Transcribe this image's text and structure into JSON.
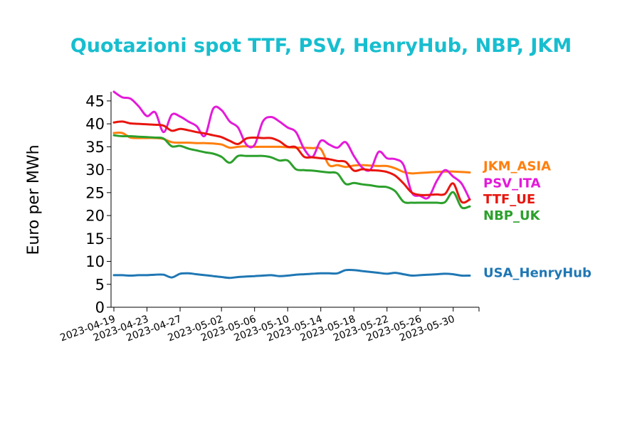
{
  "chart_data": {
    "type": "line",
    "title": "Quotazioni spot TTF, PSV, HenryHub, NBP, JKM",
    "ylabel": "Euro per MWh",
    "xlabel": "",
    "ylim": [
      0,
      47
    ],
    "yticks": [
      0,
      5,
      10,
      15,
      20,
      25,
      30,
      35,
      40,
      45
    ],
    "x": [
      "2023-04-19",
      "2023-04-20",
      "2023-04-21",
      "2023-04-22",
      "2023-04-23",
      "2023-04-24",
      "2023-04-25",
      "2023-04-26",
      "2023-04-27",
      "2023-04-28",
      "2023-04-29",
      "2023-04-30",
      "2023-05-01",
      "2023-05-02",
      "2023-05-03",
      "2023-05-04",
      "2023-05-05",
      "2023-05-06",
      "2023-05-07",
      "2023-05-08",
      "2023-05-09",
      "2023-05-10",
      "2023-05-11",
      "2023-05-12",
      "2023-05-13",
      "2023-05-14",
      "2023-05-15",
      "2023-05-16",
      "2023-05-17",
      "2023-05-18",
      "2023-05-19",
      "2023-05-20",
      "2023-05-21",
      "2023-05-22",
      "2023-05-23",
      "2023-05-24",
      "2023-05-25",
      "2023-05-26",
      "2023-05-27",
      "2023-05-28",
      "2023-05-29",
      "2023-05-30",
      "2023-05-31",
      "2023-06-01"
    ],
    "xticks": [
      "2023-04-19",
      "2023-04-23",
      "2023-04-27",
      "2023-05-02",
      "2023-05-06",
      "2023-05-10",
      "2023-05-14",
      "2023-05-18",
      "2023-05-22",
      "2023-05-26",
      "2023-05-30"
    ],
    "series": [
      {
        "name": "JKM_ASIA",
        "color": "#ff7f0e",
        "values": [
          38.0,
          38.0,
          37.0,
          36.9,
          36.9,
          36.9,
          36.7,
          36.0,
          35.9,
          35.9,
          35.8,
          35.8,
          35.7,
          35.5,
          34.8,
          35.0,
          35.1,
          35.0,
          35.0,
          35.0,
          35.0,
          34.9,
          34.8,
          34.8,
          34.7,
          34.5,
          31.0,
          31.0,
          30.6,
          30.9,
          31.0,
          30.9,
          30.8,
          30.8,
          30.3,
          29.5,
          29.2,
          29.3,
          29.4,
          29.5,
          29.6,
          29.6,
          29.5,
          29.4
        ]
      },
      {
        "name": "PSV_ITA",
        "color": "#e41ad9",
        "values": [
          47.0,
          45.8,
          45.5,
          43.8,
          41.7,
          42.5,
          38.2,
          42.0,
          41.6,
          40.5,
          39.5,
          37.4,
          43.3,
          43.0,
          40.5,
          39.2,
          35.5,
          35.4,
          40.5,
          41.5,
          40.5,
          39.2,
          38.2,
          34.5,
          32.8,
          36.3,
          35.5,
          34.8,
          36.0,
          33.0,
          30.5,
          30.0,
          33.9,
          32.5,
          32.3,
          31.0,
          25.0,
          24.3,
          23.9,
          27.5,
          29.9,
          28.5,
          27.0,
          23.5
        ]
      },
      {
        "name": "TTF_UE",
        "color": "#e8150e",
        "values": [
          40.3,
          40.5,
          40.1,
          40.0,
          39.9,
          39.8,
          39.6,
          38.5,
          38.9,
          38.6,
          38.2,
          37.9,
          37.5,
          37.1,
          36.3,
          35.6,
          36.8,
          37.0,
          36.9,
          36.9,
          36.2,
          35.0,
          34.9,
          32.8,
          32.7,
          32.5,
          32.3,
          31.9,
          31.7,
          29.8,
          30.1,
          29.9,
          29.8,
          29.5,
          28.7,
          27.0,
          25.0,
          24.5,
          24.5,
          24.6,
          24.7,
          27.0,
          23.0,
          23.5
        ]
      },
      {
        "name": "NBP_UK",
        "color": "#2ca02c",
        "values": [
          37.5,
          37.3,
          37.3,
          37.2,
          37.1,
          37.0,
          36.8,
          35.1,
          35.2,
          34.6,
          34.2,
          33.8,
          33.5,
          32.8,
          31.5,
          33.0,
          33.0,
          33.0,
          33.0,
          32.7,
          32.0,
          32.0,
          30.1,
          29.9,
          29.8,
          29.6,
          29.4,
          29.2,
          26.9,
          27.1,
          26.8,
          26.6,
          26.3,
          26.2,
          25.3,
          23.0,
          22.8,
          22.8,
          22.8,
          22.8,
          22.9,
          25.1,
          21.8,
          22.0
        ]
      },
      {
        "name": "USA_HenryHub",
        "color": "#1f77b4",
        "values": [
          7.0,
          7.0,
          6.9,
          7.0,
          7.0,
          7.1,
          7.1,
          6.5,
          7.3,
          7.4,
          7.2,
          7.0,
          6.8,
          6.6,
          6.4,
          6.6,
          6.7,
          6.8,
          6.9,
          7.0,
          6.8,
          6.9,
          7.1,
          7.2,
          7.3,
          7.4,
          7.4,
          7.4,
          8.1,
          8.1,
          7.9,
          7.7,
          7.5,
          7.3,
          7.5,
          7.2,
          6.9,
          7.0,
          7.1,
          7.2,
          7.3,
          7.2,
          6.9,
          6.9
        ]
      }
    ],
    "legend": "right, labels at line ends",
    "grid": false
  }
}
